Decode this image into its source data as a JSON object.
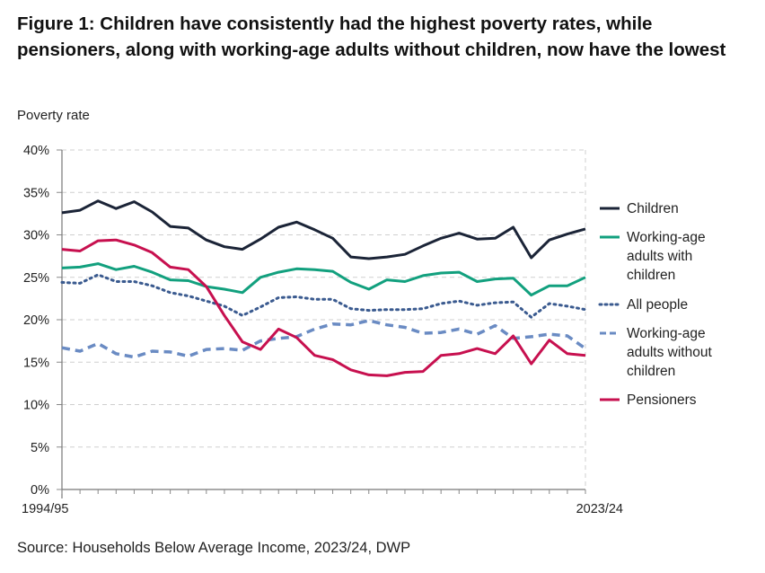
{
  "chart_data": {
    "type": "line",
    "title": "Figure 1: Children have consistently had the highest poverty rates, while pensioners, along with working-age adults without children, now have the lowest",
    "ylabel": "Poverty rate",
    "xlabel": "",
    "x_tick_labels": [
      "1994/95",
      "2023/24"
    ],
    "x_count": 30,
    "ylim": [
      0,
      40
    ],
    "y_ticks": [
      "0%",
      "5%",
      "10%",
      "15%",
      "20%",
      "25%",
      "30%",
      "35%",
      "40%"
    ],
    "grid": true,
    "legend_placement": "right",
    "series": [
      {
        "name": "Children",
        "legend_lines": [
          "Children"
        ],
        "color": "#1b2437",
        "style": "solid",
        "values": [
          32.6,
          32.9,
          34.0,
          33.1,
          33.9,
          32.7,
          31.0,
          30.8,
          29.4,
          28.6,
          28.3,
          29.5,
          30.9,
          31.5,
          30.6,
          29.6,
          27.4,
          27.2,
          27.4,
          27.7,
          28.7,
          29.6,
          30.2,
          29.5,
          29.6,
          30.9,
          27.3,
          29.4,
          30.1,
          30.7
        ]
      },
      {
        "name": "Working-age adults with children",
        "legend_lines": [
          "Working-age",
          "adults with",
          "children"
        ],
        "color": "#12a07e",
        "style": "solid",
        "values": [
          26.1,
          26.2,
          26.6,
          25.9,
          26.3,
          25.6,
          24.7,
          24.6,
          23.9,
          23.6,
          23.2,
          25.0,
          25.6,
          26.0,
          25.9,
          25.7,
          24.4,
          23.6,
          24.7,
          24.5,
          25.2,
          25.5,
          25.6,
          24.5,
          24.8,
          24.9,
          22.9,
          24.0,
          24.0,
          25.0
        ]
      },
      {
        "name": "All people",
        "legend_lines": [
          "All people"
        ],
        "color": "#3a5a8f",
        "style": "dotted",
        "values": [
          24.4,
          24.3,
          25.3,
          24.5,
          24.5,
          24.0,
          23.2,
          22.8,
          22.2,
          21.6,
          20.5,
          21.5,
          22.6,
          22.7,
          22.4,
          22.4,
          21.3,
          21.1,
          21.2,
          21.2,
          21.3,
          21.9,
          22.2,
          21.7,
          22.0,
          22.1,
          20.3,
          21.9,
          21.6,
          21.2
        ]
      },
      {
        "name": "Working-age adults without children",
        "legend_lines": [
          "Working-age",
          "adults without",
          "children"
        ],
        "color": "#6a8bc3",
        "style": "dashed",
        "values": [
          16.7,
          16.3,
          17.2,
          16.0,
          15.6,
          16.3,
          16.2,
          15.7,
          16.5,
          16.6,
          16.4,
          17.5,
          17.8,
          18.0,
          18.9,
          19.5,
          19.4,
          19.9,
          19.4,
          19.1,
          18.4,
          18.5,
          18.9,
          18.3,
          19.3,
          17.8,
          18.0,
          18.3,
          18.1,
          16.6
        ]
      },
      {
        "name": "Pensioners",
        "legend_lines": [
          "Pensioners"
        ],
        "color": "#c7104f",
        "style": "solid",
        "values": [
          28.3,
          28.1,
          29.3,
          29.4,
          28.8,
          27.9,
          26.2,
          25.9,
          23.9,
          20.5,
          17.4,
          16.5,
          18.9,
          17.9,
          15.8,
          15.3,
          14.1,
          13.5,
          13.4,
          13.8,
          13.9,
          15.8,
          16.0,
          16.6,
          16.0,
          18.1,
          14.8,
          17.6,
          16.0,
          15.8
        ]
      }
    ]
  },
  "source": "Source: Households Below Average Income, 2023/24, DWP"
}
